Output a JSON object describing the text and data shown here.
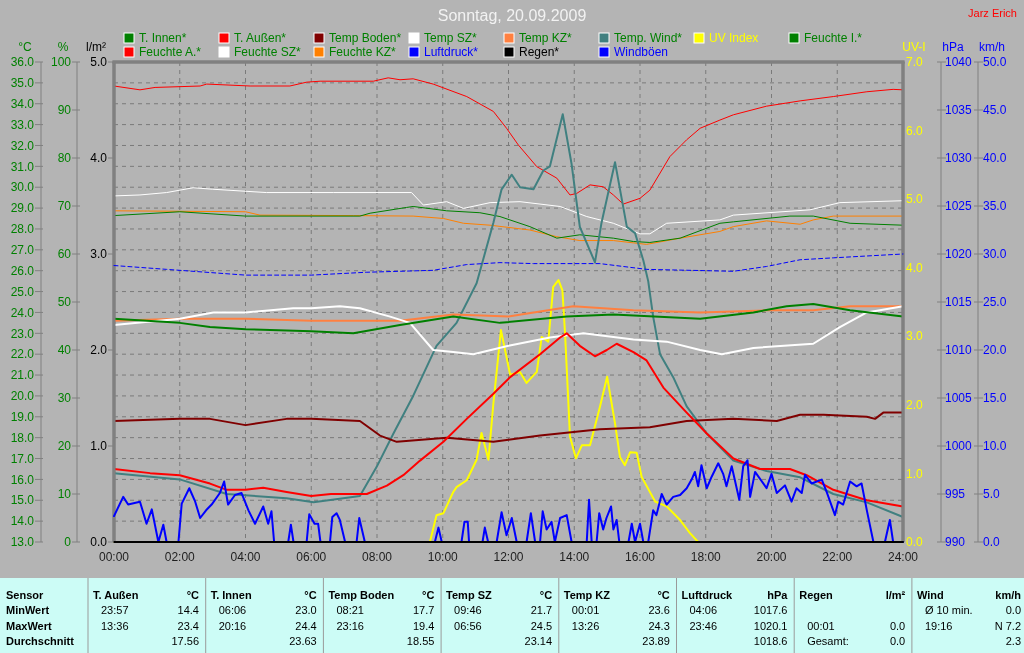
{
  "chart_data": [
    {
      "type": "line",
      "title": "Sonntag, 20.09.2009",
      "annotations": [
        "Jarz Erich"
      ],
      "ylabel": "°C",
      "y2label": "%",
      "y3label": "UV-I",
      "xlim": [
        0,
        24
      ],
      "xticks": [
        {
          "value": 0,
          "label": "00:00"
        },
        {
          "value": 2,
          "label": "02:00"
        },
        {
          "value": 4,
          "label": "04:00"
        },
        {
          "value": 6,
          "label": "06:00"
        },
        {
          "value": 8,
          "label": "08:00"
        },
        {
          "value": 10,
          "label": "10:00"
        },
        {
          "value": 12,
          "label": "12:00"
        },
        {
          "value": 14,
          "label": "14:00"
        },
        {
          "value": 16,
          "label": "16:00"
        },
        {
          "value": 18,
          "label": "18:00"
        },
        {
          "value": 20,
          "label": "20:00"
        },
        {
          "value": 22,
          "label": "22:00"
        },
        {
          "value": 24,
          "label": "24:00"
        }
      ],
      "ylim": [
        13,
        36
      ],
      "yticks": [
        {
          "value": 13,
          "label": "13.0"
        },
        {
          "value": 14,
          "label": "14.0"
        },
        {
          "value": 15,
          "label": "15.0"
        },
        {
          "value": 16,
          "label": "16.0"
        },
        {
          "value": 17,
          "label": "17.0"
        },
        {
          "value": 18,
          "label": "18.0"
        },
        {
          "value": 19,
          "label": "19.0"
        },
        {
          "value": 20,
          "label": "20.0"
        },
        {
          "value": 21,
          "label": "21.0"
        },
        {
          "value": 22,
          "label": "22.0"
        },
        {
          "value": 23,
          "label": "23.0"
        },
        {
          "value": 24,
          "label": "24.0"
        },
        {
          "value": 25,
          "label": "25.0"
        },
        {
          "value": 26,
          "label": "26.0"
        },
        {
          "value": 27,
          "label": "27.0"
        },
        {
          "value": 28,
          "label": "28.0"
        },
        {
          "value": 29,
          "label": "29.0"
        },
        {
          "value": 30,
          "label": "30.0"
        },
        {
          "value": 31,
          "label": "31.0"
        },
        {
          "value": 32,
          "label": "32.0"
        },
        {
          "value": 33,
          "label": "33.0"
        },
        {
          "value": 34,
          "label": "34.0"
        },
        {
          "value": 35,
          "label": "35.0"
        },
        {
          "value": 36,
          "label": "36.0"
        }
      ],
      "y2lim": [
        0,
        100
      ],
      "y2ticks": [
        0,
        10,
        20,
        30,
        40,
        50,
        60,
        70,
        80,
        90,
        100
      ],
      "y3lim": [
        0,
        7
      ],
      "y3ticks": [
        {
          "value": 0,
          "label": "0.0"
        },
        {
          "value": 1,
          "label": "1.0"
        },
        {
          "value": 2,
          "label": "2.0"
        },
        {
          "value": 3,
          "label": "3.0"
        },
        {
          "value": 4,
          "label": "4.0"
        },
        {
          "value": 5,
          "label": "5.0"
        },
        {
          "value": 6,
          "label": "6.0"
        },
        {
          "value": 7,
          "label": "7.0"
        }
      ],
      "grid": true,
      "legend": "top",
      "series": [
        {
          "name": "T. Innen*",
          "color": "#008000",
          "x": [
            0,
            2,
            2.92,
            4,
            6,
            7.28,
            8.7,
            10.32,
            11.74,
            13.77,
            15.19,
            17.83,
            19.45,
            20.46,
            21.27,
            22.39,
            24
          ],
          "values": [
            23.7,
            23.5,
            23.3,
            23.2,
            23.1,
            23.0,
            23.4,
            23.8,
            23.5,
            23.8,
            23.9,
            23.7,
            24.0,
            24.3,
            24.4,
            24.1,
            23.8
          ]
        },
        {
          "name": "T. Außen*",
          "color": "#ff0000",
          "x": [
            0,
            1.1,
            2,
            2.92,
            3.43,
            4,
            4.54,
            5.25,
            6,
            6.6,
            7.69,
            8.3,
            8.8,
            9.31,
            10.02,
            10.73,
            11.54,
            12.05,
            12.96,
            13.57,
            13.77,
            14.17,
            14.63,
            14.99,
            15.29,
            15.8,
            16.2,
            16.71,
            17.42,
            18.03,
            18.84,
            19.65,
            20.56,
            21.07,
            21.88,
            22.9,
            24
          ],
          "values": [
            16.5,
            16.3,
            16.2,
            15.8,
            15.5,
            15.5,
            15.6,
            15.4,
            15.2,
            15.3,
            15.3,
            15.7,
            16.2,
            16.9,
            17.8,
            18.9,
            20.1,
            20.9,
            22.0,
            22.8,
            23.0,
            22.4,
            21.9,
            22.2,
            22.5,
            22.1,
            21.7,
            20.4,
            19.2,
            18.2,
            17.0,
            16.5,
            16.5,
            16.2,
            15.5,
            15.0,
            14.7
          ]
        },
        {
          "name": "Temp Boden*",
          "color": "#800000",
          "x": [
            0,
            2,
            2.92,
            4,
            5.25,
            6,
            7.48,
            8.09,
            8.6,
            10.12,
            11.54,
            12,
            12.96,
            14.78,
            16.3,
            17.42,
            18.84,
            20.16,
            20.87,
            21.58,
            22.9,
            23.15,
            23.4,
            24
          ],
          "values": [
            18.8,
            18.9,
            18.9,
            18.6,
            18.9,
            18.9,
            18.8,
            18.1,
            17.8,
            18.0,
            17.8,
            17.9,
            18.1,
            18.4,
            18.5,
            18.8,
            18.9,
            18.8,
            19.1,
            19.1,
            19.0,
            18.9,
            19.2,
            19.2
          ]
        },
        {
          "name": "Temp SZ*",
          "color": "#ffffff",
          "x": [
            0,
            2,
            3.02,
            4,
            5.45,
            6,
            6.87,
            7.48,
            8.4,
            9.0,
            9.71,
            10.32,
            10.93,
            12,
            13.26,
            14.28,
            15.8,
            16.81,
            17.83,
            18.49,
            19.45,
            21.27,
            22.08,
            22.9,
            24
          ],
          "values": [
            23.4,
            23.7,
            24.0,
            24.0,
            24.2,
            24.2,
            24.3,
            24.2,
            23.8,
            23.5,
            22.2,
            22.1,
            22.0,
            22.4,
            22.8,
            23.0,
            22.7,
            22.6,
            22.2,
            22.0,
            22.3,
            22.5,
            23.3,
            24.0,
            24.3
          ]
        },
        {
          "name": "Temp KZ*",
          "color": "#ff8040",
          "x": [
            0,
            2,
            4,
            6,
            8.7,
            10.32,
            12,
            13.97,
            15.8,
            17.83,
            19.85,
            21.27,
            22.39,
            24
          ],
          "values": [
            23.6,
            23.7,
            23.7,
            23.6,
            23.6,
            23.9,
            23.8,
            24.3,
            24.1,
            24.0,
            24.1,
            24.1,
            24.3,
            24.3
          ]
        },
        {
          "name": "Temp. Wind*",
          "color": "#408080",
          "x": [
            0,
            2,
            3.43,
            5.25,
            6.07,
            7.48,
            7.99,
            8.5,
            9.1,
            9.81,
            10.42,
            11.03,
            11.54,
            11.79,
            12.1,
            12.35,
            12.76,
            13.06,
            13.26,
            13.65,
            13.92,
            14.17,
            14.63,
            14.83,
            15.24,
            15.6,
            15.85,
            16.1,
            16.25,
            16.4,
            16.61,
            17.01,
            17.42,
            18.03,
            18.84,
            19.85,
            20.87,
            21.88,
            22.9,
            24
          ],
          "values": [
            16.3,
            16.0,
            15.3,
            15.1,
            14.9,
            15.2,
            16.6,
            18.2,
            20.0,
            22.4,
            23.5,
            25.4,
            28.3,
            29.9,
            30.6,
            30.0,
            29.9,
            30.8,
            31.0,
            33.5,
            31.1,
            28.1,
            26.4,
            28.3,
            31.2,
            28.1,
            27.8,
            26.5,
            25.5,
            23.8,
            22.0,
            20.9,
            19.5,
            18.2,
            16.9,
            16.4,
            16.1,
            15.3,
            14.9,
            14.2
          ]
        },
        {
          "name": "UV Index",
          "color": "#ffff00",
          "axis": "y3",
          "x": [
            0,
            9.61,
            9.81,
            10.02,
            10.32,
            10.42,
            10.73,
            11.03,
            11.18,
            11.39,
            11.54,
            11.77,
            12.05,
            12.35,
            12.55,
            12.86,
            13.01,
            13.21,
            13.36,
            13.52,
            13.64,
            13.72,
            13.87,
            14.05,
            14.23,
            14.48,
            14.78,
            15.0,
            15.24,
            15.39,
            15.54,
            15.7,
            15.9,
            16.05,
            16.46,
            16.81,
            17.22,
            17.52,
            17.77,
            24
          ],
          "values": [
            0,
            0,
            0.39,
            0.42,
            0.73,
            0.8,
            0.9,
            1.2,
            1.59,
            1.2,
            2.02,
            3.09,
            2.44,
            2.48,
            2.32,
            2.48,
            2.99,
            2.92,
            3.72,
            3.82,
            3.67,
            3.04,
            1.54,
            1.22,
            1.41,
            1.41,
            1.97,
            2.41,
            1.73,
            1.24,
            1.12,
            1.31,
            1.3,
            0.95,
            0.59,
            0.52,
            0.32,
            0.13,
            0,
            0
          ]
        },
        {
          "name": "Feuchte I.*",
          "color": "#008000",
          "axis": "y2",
          "x": [
            0,
            2,
            4,
            6,
            7.48,
            7.79,
            8.9,
            9.1,
            10.12,
            11.13,
            11.74,
            12.65,
            13.47,
            14.17,
            15.19,
            15.8,
            16.3,
            17.22,
            18.43,
            18.84,
            20.56,
            21.27,
            22.39,
            24
          ],
          "values": [
            68.0,
            68.8,
            67.9,
            67.9,
            67.9,
            68.5,
            69.7,
            69.9,
            69.0,
            68.6,
            67.8,
            65.7,
            63.3,
            64.0,
            63.3,
            62.6,
            62.4,
            63.3,
            66.4,
            66.7,
            67.9,
            67.9,
            66.4,
            66.0
          ]
        },
        {
          "name": "Feuchte A.*",
          "color": "#ff0000",
          "axis": "y2",
          "x": [
            0,
            0.79,
            1.25,
            2.62,
            2.82,
            4.14,
            5.35,
            5.86,
            6.27,
            7.89,
            8.34,
            8.7,
            9.1,
            9.71,
            10.73,
            11.54,
            11.94,
            12.3,
            12.86,
            13.47,
            13.87,
            14.07,
            14.48,
            14.88,
            15.19,
            15.49,
            16.0,
            16.3,
            16.91,
            17.42,
            17.83,
            18.43,
            18.84,
            19.85,
            20.87,
            21.88,
            22.9,
            23.7,
            24
          ],
          "values": [
            95.0,
            94.2,
            94.7,
            95.0,
            95.4,
            95.0,
            95.0,
            95.8,
            96.0,
            96.0,
            96.7,
            96.3,
            96.5,
            95.4,
            92.8,
            89.7,
            86.2,
            82.7,
            78.2,
            75.8,
            72.3,
            72.6,
            74.4,
            74.0,
            72.3,
            70.4,
            71.6,
            73.3,
            80.3,
            83.8,
            86.2,
            87.9,
            89.0,
            90.8,
            91.9,
            92.8,
            93.8,
            94.3,
            94.2
          ]
        },
        {
          "name": "Feuchte SZ*",
          "color": "#ffffff",
          "axis": "y2",
          "x": [
            0,
            0.79,
            1.6,
            2.41,
            2.99,
            4.64,
            6.67,
            9.05,
            9.41,
            10.12,
            10.63,
            11.44,
            12.35,
            13.57,
            14.38,
            15.19,
            16.0,
            16.3,
            16.81,
            18.43,
            18.84,
            21.17,
            22.08,
            24
          ],
          "values": [
            72.1,
            72.3,
            72.8,
            73.8,
            73.5,
            72.8,
            72.8,
            72.8,
            70.2,
            70.9,
            69.5,
            70.7,
            70.9,
            69.9,
            67.8,
            66.4,
            64.2,
            64.2,
            66.4,
            67.1,
            68.1,
            69.2,
            70.7,
            71.1
          ]
        },
        {
          "name": "Feuchte KZ*",
          "color": "#ff8000",
          "axis": "y2",
          "x": [
            0,
            4,
            4.44,
            7.28,
            9.1,
            10.02,
            10.63,
            11.44,
            12.65,
            13.47,
            14.17,
            15.19,
            16.2,
            17.22,
            18.43,
            18.84,
            19.85,
            20.87,
            21.27,
            21.88,
            24
          ],
          "values": [
            69.0,
            68.8,
            68.1,
            68.0,
            67.9,
            67.4,
            66.4,
            66.0,
            65.0,
            63.6,
            62.8,
            62.8,
            62.0,
            63.3,
            64.7,
            65.7,
            66.9,
            66.2,
            67.1,
            67.9,
            67.9
          ]
        }
      ]
    },
    {
      "type": "line",
      "ylabel": "l/m²",
      "y2label": "hPa",
      "y3label": "km/h",
      "tick_labels": "y",
      "legend": "top",
      "xlim": [
        0,
        24
      ],
      "ylim": [
        0,
        5
      ],
      "yticks": [
        {
          "value": 0,
          "label": "0.0"
        },
        {
          "value": 1,
          "label": "1.0"
        },
        {
          "value": 2,
          "label": "2.0"
        },
        {
          "value": 3,
          "label": "3.0"
        },
        {
          "value": 4,
          "label": "4.0"
        },
        {
          "value": 5,
          "label": "5.0"
        }
      ],
      "y2lim": [
        990,
        1040
      ],
      "y2ticks": [
        990,
        995,
        1000,
        1005,
        1010,
        1015,
        1020,
        1025,
        1030,
        1035,
        1040
      ],
      "y3lim": [
        0,
        50
      ],
      "y3ticks": [
        {
          "value": 0,
          "label": "0.0"
        },
        {
          "value": 5,
          "label": "5.0"
        },
        {
          "value": 10,
          "label": "10.0"
        },
        {
          "value": 15,
          "label": "15.0"
        },
        {
          "value": 20,
          "label": "20.0"
        },
        {
          "value": 25,
          "label": "25.0"
        },
        {
          "value": 30,
          "label": "30.0"
        },
        {
          "value": 35,
          "label": "35.0"
        },
        {
          "value": 40,
          "label": "40.0"
        },
        {
          "value": 45,
          "label": "45.0"
        },
        {
          "value": 50,
          "label": "50.0"
        }
      ],
      "series": [
        {
          "name": "Luftdruck*",
          "color": "#0000ff",
          "axis": "y2",
          "line_style": "dashed",
          "x": [
            0,
            1.6,
            4,
            6,
            7.69,
            9.71,
            10.73,
            11.74,
            12.76,
            14.78,
            16.2,
            18.84,
            19.85,
            20.87,
            21.88,
            24
          ],
          "values": [
            1018.8,
            1018.4,
            1017.8,
            1017.8,
            1018.1,
            1018.3,
            1018.9,
            1019.1,
            1019.0,
            1019.0,
            1018.4,
            1018.2,
            1018.7,
            1019.4,
            1019.6,
            1020.0
          ]
        },
        {
          "name": "Regen*",
          "color": "#000000",
          "x": [
            0,
            2,
            4,
            6,
            8,
            10,
            12,
            14,
            16,
            18,
            20,
            22,
            24
          ],
          "values": [
            0,
            0,
            0,
            0,
            0,
            0,
            0,
            0,
            0,
            0,
            0,
            0,
            0
          ]
        },
        {
          "name": "Windböen",
          "color": "#0000ff",
          "axis": "y3",
          "x": [
            0,
            0.28,
            0.43,
            0.79,
            0.99,
            1.15,
            1.35,
            1.5,
            1.6,
            1.96,
            2.06,
            2.29,
            2.47,
            2.62,
            2.8,
            2.97,
            3.22,
            3.35,
            3.47,
            3.68,
            3.88,
            4.09,
            4.29,
            4.54,
            4.69,
            4.79,
            4.87,
            5.3,
            5.38,
            5.46,
            5.86,
            5.94,
            6.1,
            6.21,
            6.28,
            6.57,
            6.64,
            6.77,
            6.87,
            7.03,
            7.38,
            7.46,
            7.63,
            9.76,
            9.87,
            9.97,
            10.57,
            10.66,
            10.76,
            10.8,
            11.21,
            11.28,
            11.38,
            11.64,
            11.79,
            11.94,
            12.1,
            12.25,
            12.55,
            12.68,
            12.81,
            12.96,
            13.04,
            13.16,
            13.31,
            13.41,
            13.57,
            13.77,
            13.92,
            14.38,
            14.45,
            14.53,
            14.68,
            14.76,
            14.88,
            14.98,
            15.12,
            15.19,
            15.29,
            15.37,
            15.65,
            15.75,
            15.85,
            16.0,
            16.1,
            16.25,
            16.4,
            16.5,
            16.66,
            16.81,
            17.01,
            17.22,
            17.42,
            17.57,
            17.67,
            17.77,
            17.87,
            18.03,
            18.18,
            18.38,
            18.53,
            18.63,
            18.79,
            19.02,
            19.14,
            19.27,
            19.35,
            19.5,
            19.75,
            19.85,
            20.0,
            20.16,
            20.41,
            20.61,
            20.76,
            20.92,
            21.02,
            21.22,
            21.53,
            21.68,
            21.93,
            22.03,
            22.18,
            22.39,
            22.59,
            22.74,
            22.9,
            23.1,
            23.45,
            23.6,
            23.7,
            24
          ],
          "values": [
            2.7,
            4.7,
            3.9,
            4.2,
            1.9,
            3.4,
            0,
            1.8,
            0,
            0,
            4.0,
            5.6,
            4.2,
            2.5,
            3.3,
            3.9,
            5.1,
            6.3,
            3.9,
            4.9,
            5.1,
            3.3,
            1.9,
            3.7,
            1.9,
            3.2,
            0,
            0,
            1.8,
            0,
            0,
            2.9,
            1.9,
            1.9,
            0,
            0,
            2.6,
            3.0,
            2.3,
            0,
            0,
            2.5,
            0,
            0,
            1.5,
            0,
            0,
            2.1,
            2.1,
            0,
            0,
            1.5,
            0,
            0,
            3.1,
            0.7,
            2.5,
            0,
            0,
            3.0,
            0,
            0,
            3.2,
            1.3,
            2.1,
            0,
            2.5,
            2.8,
            0,
            0,
            4.4,
            0,
            0,
            3.0,
            1.3,
            2.5,
            3.7,
            1.3,
            2.3,
            0,
            0,
            1.9,
            0,
            1.9,
            0,
            0,
            3.3,
            2.8,
            5.0,
            3.9,
            4.7,
            4.9,
            5.6,
            6.5,
            7.3,
            5.8,
            8.0,
            5.6,
            6.8,
            8.2,
            7.1,
            5.8,
            7.9,
            4.4,
            7.9,
            8.5,
            4.7,
            7.3,
            6.1,
            5.6,
            7.1,
            5.1,
            5.9,
            4.2,
            5.6,
            5.1,
            7.0,
            6.1,
            6.5,
            5.2,
            2.8,
            4.2,
            3.9,
            6.3,
            5.8,
            6.1,
            3.3,
            0,
            0,
            2.3,
            0,
            0
          ]
        }
      ]
    },
    {
      "type": "other",
      "annotations": [
        "Sensor",
        "T. Außen",
        "°C",
        "T. Innen",
        "°C",
        "Temp Boden",
        "°C",
        "Temp SZ",
        "°C",
        "Temp KZ",
        "°C",
        "Luftdruck",
        "hPa",
        "Regen",
        "l/m²",
        "Wind",
        "km/h",
        "MinWert",
        "23:57",
        "14.4",
        "06:06",
        "23.0",
        "08:21",
        "17.7",
        "09:46",
        "21.7",
        "00:01",
        "23.6",
        "04:06",
        "1017.6",
        "Ø 10 min.",
        "0.0",
        "MaxWert",
        "13:36",
        "23.4",
        "20:16",
        "24.4",
        "23:16",
        "19.4",
        "06:56",
        "24.5",
        "13:26",
        "24.3",
        "23:46",
        "1020.1",
        "00:01",
        "0.0",
        "19:16",
        "N 7.2",
        "Durchschnitt",
        "17.56",
        "23.63",
        "18.55",
        "23.14",
        "23.89",
        "1018.6",
        "Gesamt:",
        "0.0",
        "2.3"
      ]
    }
  ]
}
